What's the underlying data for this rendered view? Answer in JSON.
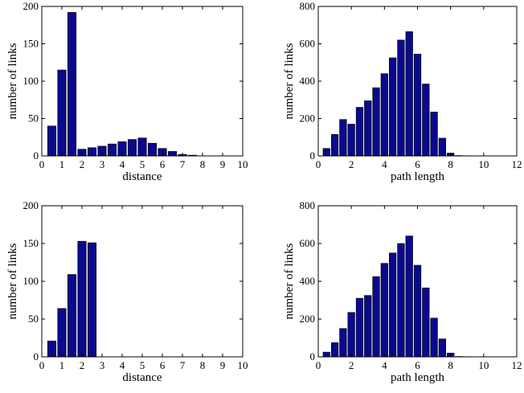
{
  "colors": {
    "bar": "#0a0a8c",
    "axis": "#000000"
  },
  "chart_data": [
    {
      "type": "bar",
      "title": "",
      "xlabel": "distance",
      "ylabel": "number of links",
      "xlim": [
        0,
        10
      ],
      "ylim": [
        0,
        200
      ],
      "xticks": [
        0,
        1,
        2,
        3,
        4,
        5,
        6,
        7,
        8,
        9,
        10
      ],
      "yticks": [
        0,
        50,
        100,
        150,
        200
      ],
      "bin_width": 0.5,
      "x": [
        0.5,
        1.0,
        1.5,
        2.0,
        2.5,
        3.0,
        3.5,
        4.0,
        4.5,
        5.0,
        5.5,
        6.0,
        6.5,
        7.0,
        7.5,
        8.0,
        8.5,
        9.0,
        9.5
      ],
      "values": [
        40,
        115,
        192,
        9,
        11,
        13,
        16,
        19,
        22,
        24,
        17,
        10,
        6,
        2,
        1,
        0,
        0,
        0,
        0
      ]
    },
    {
      "type": "bar",
      "title": "",
      "xlabel": "path length",
      "ylabel": "number of links",
      "xlim": [
        0,
        12
      ],
      "ylim": [
        0,
        800
      ],
      "xticks": [
        0,
        2,
        4,
        6,
        8,
        10,
        12
      ],
      "yticks": [
        0,
        200,
        400,
        600,
        800
      ],
      "bin_width": 0.5,
      "x": [
        0.5,
        1.0,
        1.5,
        2.0,
        2.5,
        3.0,
        3.5,
        4.0,
        4.5,
        5.0,
        5.5,
        6.0,
        6.5,
        7.0,
        7.5,
        8.0,
        8.5,
        9.0,
        9.5,
        10.0,
        10.5,
        11.0,
        11.5
      ],
      "values": [
        40,
        115,
        195,
        170,
        260,
        295,
        365,
        440,
        525,
        620,
        665,
        545,
        385,
        235,
        95,
        15,
        2,
        1,
        0,
        0,
        0,
        0,
        0
      ]
    },
    {
      "type": "bar",
      "title": "",
      "xlabel": "distance",
      "ylabel": "number of links",
      "xlim": [
        0,
        10
      ],
      "ylim": [
        0,
        200
      ],
      "xticks": [
        0,
        1,
        2,
        3,
        4,
        5,
        6,
        7,
        8,
        9,
        10
      ],
      "yticks": [
        0,
        50,
        100,
        150,
        200
      ],
      "bin_width": 0.5,
      "x": [
        0.5,
        1.0,
        1.5,
        2.0,
        2.5,
        3.0,
        3.5,
        4.0,
        4.5,
        5.0,
        5.5,
        6.0,
        6.5,
        7.0,
        7.5,
        8.0,
        8.5,
        9.0,
        9.5
      ],
      "values": [
        21,
        64,
        109,
        153,
        151,
        0,
        0,
        0,
        0,
        0,
        0,
        0,
        0,
        0,
        0,
        0,
        0,
        0,
        0
      ]
    },
    {
      "type": "bar",
      "title": "",
      "xlabel": "path length",
      "ylabel": "number of links",
      "xlim": [
        0,
        12
      ],
      "ylim": [
        0,
        800
      ],
      "xticks": [
        0,
        2,
        4,
        6,
        8,
        10,
        12
      ],
      "yticks": [
        0,
        200,
        400,
        600,
        800
      ],
      "bin_width": 0.5,
      "x": [
        0.5,
        1.0,
        1.5,
        2.0,
        2.5,
        3.0,
        3.5,
        4.0,
        4.5,
        5.0,
        5.5,
        6.0,
        6.5,
        7.0,
        7.5,
        8.0,
        8.5,
        9.0,
        9.5,
        10.0,
        10.5,
        11.0,
        11.5
      ],
      "values": [
        25,
        75,
        150,
        235,
        310,
        325,
        425,
        495,
        550,
        600,
        640,
        485,
        365,
        205,
        95,
        20,
        2,
        1,
        0,
        0,
        0,
        0,
        0
      ]
    }
  ]
}
